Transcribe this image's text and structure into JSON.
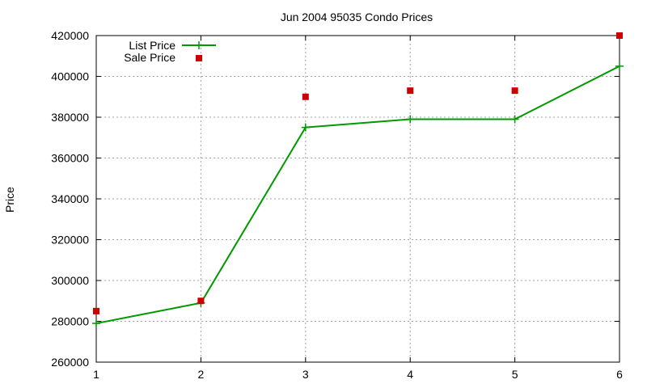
{
  "chart_data": {
    "type": "line",
    "title": "Jun 2004 95035 Condo Prices",
    "xlabel": "",
    "ylabel": "Price",
    "xlim": [
      1,
      6
    ],
    "ylim": [
      260000,
      420000
    ],
    "x_ticks": [
      "1",
      "2",
      "3",
      "4",
      "5",
      "6"
    ],
    "y_ticks": [
      "260000",
      "280000",
      "300000",
      "320000",
      "340000",
      "360000",
      "380000",
      "400000",
      "420000"
    ],
    "grid": true,
    "legend_position": "top-left",
    "x": [
      1,
      2,
      3,
      4,
      5,
      6
    ],
    "series": [
      {
        "name": "List Price",
        "style": "linespoints",
        "marker": "plus",
        "color": "#009900",
        "values": [
          279000,
          289000,
          375000,
          379000,
          379000,
          405000
        ]
      },
      {
        "name": "Sale Price",
        "style": "points",
        "marker": "square",
        "color": "#cc0000",
        "values": [
          285000,
          290000,
          390000,
          393000,
          393000,
          420000
        ]
      }
    ]
  }
}
